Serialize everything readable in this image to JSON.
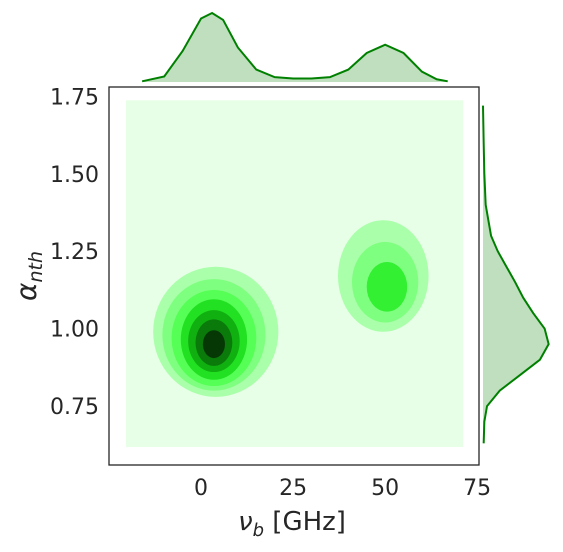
{
  "chart_data": {
    "type": "kde_joint",
    "xlabel": [
      "ν",
      "b",
      " [GHz]"
    ],
    "ylabel": [
      "α",
      "nth"
    ],
    "xlim": [
      -25,
      75.5
    ],
    "ylim": [
      0.56,
      1.78
    ],
    "xticks": [
      0,
      25,
      50,
      75
    ],
    "yticks": [
      {
        "value": 0.75,
        "label": "0.75"
      },
      {
        "value": 1.0,
        "label": "1.00"
      },
      {
        "value": 1.25,
        "label": "1.25"
      },
      {
        "value": 1.5,
        "label": "1.50"
      },
      {
        "value": 1.75,
        "label": "1.75"
      }
    ],
    "color": "#008000",
    "background": {
      "x": [
        -20.4,
        71.2
      ],
      "y": [
        0.618,
        1.737
      ],
      "color": "#e6ffe6"
    },
    "contours": [
      {
        "cx": 4,
        "cy": 0.99,
        "rx": 17,
        "ry": 0.21,
        "color": "#aaffaa"
      },
      {
        "cx": 3.5,
        "cy": 0.98,
        "rx": 14,
        "ry": 0.18,
        "color": "#7fff7f"
      },
      {
        "cx": 3.5,
        "cy": 0.97,
        "rx": 11.5,
        "ry": 0.155,
        "color": "#55ff55"
      },
      {
        "cx": 3.5,
        "cy": 0.965,
        "rx": 9,
        "ry": 0.13,
        "color": "#22e022"
      },
      {
        "cx": 3.5,
        "cy": 0.96,
        "rx": 7,
        "ry": 0.1,
        "color": "#10b010"
      },
      {
        "cx": 3.5,
        "cy": 0.955,
        "rx": 5,
        "ry": 0.075,
        "color": "#0a7a0a"
      },
      {
        "cx": 3.5,
        "cy": 0.95,
        "rx": 3,
        "ry": 0.045,
        "color": "#063806"
      },
      {
        "cx": 49.5,
        "cy": 1.17,
        "rx": 12.3,
        "ry": 0.18,
        "color": "#aaffaa"
      },
      {
        "cx": 50,
        "cy": 1.15,
        "rx": 9,
        "ry": 0.13,
        "color": "#7fff7f"
      },
      {
        "cx": 50.5,
        "cy": 1.135,
        "rx": 5.5,
        "ry": 0.08,
        "color": "#33f033"
      }
    ],
    "top_marginal": {
      "x": [
        -16,
        -10,
        -5,
        0,
        3,
        6,
        10,
        15,
        20,
        25,
        30,
        35,
        40,
        45,
        50,
        55,
        60,
        64,
        67
      ],
      "density": [
        0.01,
        0.08,
        0.45,
        0.92,
        1.0,
        0.9,
        0.5,
        0.18,
        0.07,
        0.05,
        0.05,
        0.07,
        0.18,
        0.42,
        0.54,
        0.42,
        0.15,
        0.04,
        0.01
      ]
    },
    "right_marginal": {
      "y": [
        0.63,
        0.7,
        0.75,
        0.8,
        0.85,
        0.9,
        0.95,
        1.0,
        1.05,
        1.1,
        1.15,
        1.2,
        1.25,
        1.3,
        1.4,
        1.5,
        1.6,
        1.72
      ],
      "density": [
        0.01,
        0.02,
        0.06,
        0.25,
        0.55,
        0.85,
        0.98,
        0.92,
        0.75,
        0.6,
        0.48,
        0.35,
        0.22,
        0.12,
        0.04,
        0.02,
        0.01,
        0.0
      ]
    }
  }
}
